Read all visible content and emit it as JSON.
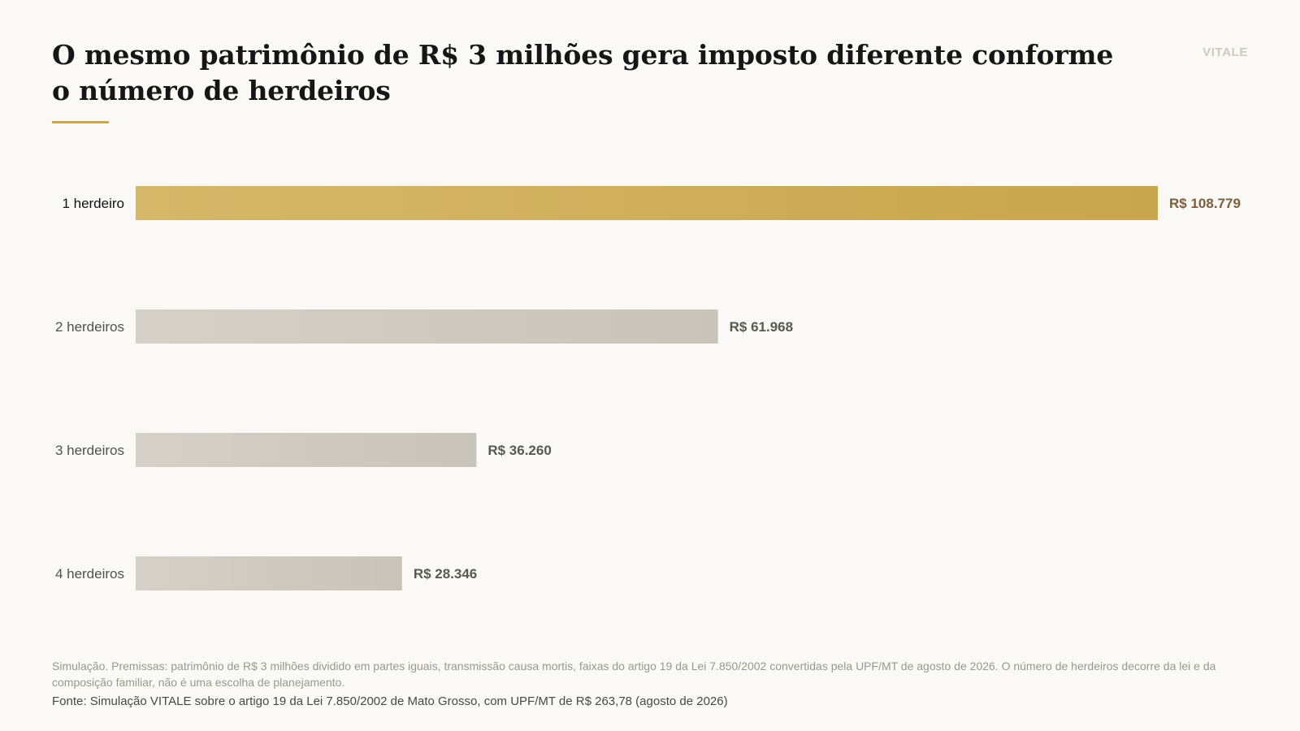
{
  "header": {
    "title": "O mesmo patrimônio de R$ 3 milhões gera imposto diferente conforme o número de herdeiros",
    "brand": "VITALE"
  },
  "colors": {
    "accent": "#c9a74e",
    "highlight_bar_start": "#d6b86a",
    "highlight_bar_end": "#c8a64d",
    "muted_bar_start": "#d6d1c8",
    "muted_bar_end": "#c9c4b9",
    "highlight_value_text": "#7b5f3c",
    "muted_value_text": "#5b5852",
    "highlight_label_text": "#111111",
    "muted_label_text": "#55524d"
  },
  "chart_data": {
    "type": "bar",
    "orientation": "horizontal",
    "categories": [
      "1 herdeiro",
      "2 herdeiros",
      "3 herdeiros",
      "4 herdeiros"
    ],
    "values": [
      108779,
      61968,
      36260,
      28346
    ],
    "value_labels": [
      "R$ 108.779",
      "R$ 61.968",
      "R$ 36.260",
      "R$ 28.346"
    ],
    "highlight_index": 0,
    "xlim": [
      0,
      108779
    ],
    "grid": false,
    "legend": "none"
  },
  "footer": {
    "note": "Simulação. Premissas: patrimônio de R$ 3 milhões dividido em partes iguais, transmissão causa mortis, faixas do artigo 19 da Lei 7.850/2002 convertidas pela UPF/MT de agosto de 2026. O número de herdeiros decorre da lei e da composição familiar, não é uma escolha de planejamento.",
    "source": "Fonte: Simulação VITALE sobre o artigo 19 da Lei 7.850/2002 de Mato Grosso, com UPF/MT de R$ 263,78 (agosto de 2026)"
  }
}
